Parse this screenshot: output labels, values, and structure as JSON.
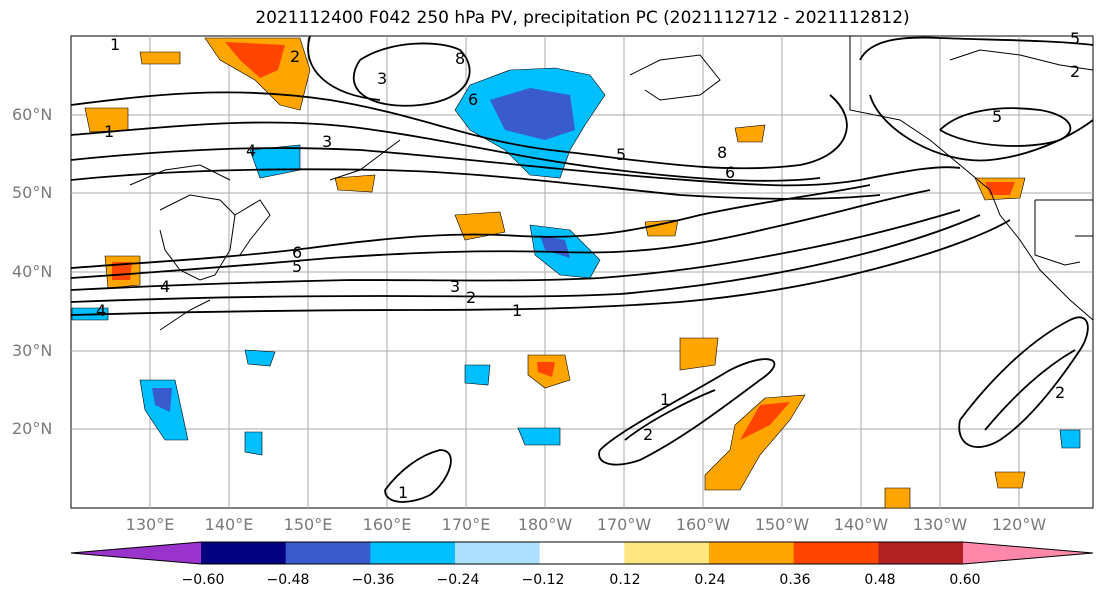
{
  "title": "2021112400 F042 250 hPa PV, precipitation PC (2021112712 - 2021112812)",
  "lat_labels": [
    "60°N",
    "50°N",
    "40°N",
    "30°N",
    "20°N"
  ],
  "lon_labels": [
    "130°E",
    "140°E",
    "150°E",
    "160°E",
    "170°E",
    "180°W",
    "170°W",
    "160°W",
    "150°W",
    "140°W",
    "130°W",
    "120°W"
  ],
  "contour_labels": [
    "1",
    "2",
    "3",
    "4",
    "5",
    "6",
    "8",
    "1",
    "3",
    "2",
    "1",
    "4",
    "6",
    "5",
    "4",
    "3",
    "5",
    "6",
    "8",
    "2",
    "5",
    "1",
    "2",
    "1",
    "2"
  ],
  "colorbar": {
    "colors": [
      "#9933cc",
      "#000080",
      "#3a5bcc",
      "#00bfff",
      "#b0e0ff",
      "#ffffff",
      "#ffe680",
      "#ffa500",
      "#ff4500",
      "#b22222",
      "#ff88aa"
    ],
    "tick_labels": [
      "−0.60",
      "−0.48",
      "−0.36",
      "−0.24",
      "−0.12",
      "0.12",
      "0.24",
      "0.36",
      "0.48",
      "0.60"
    ]
  }
}
